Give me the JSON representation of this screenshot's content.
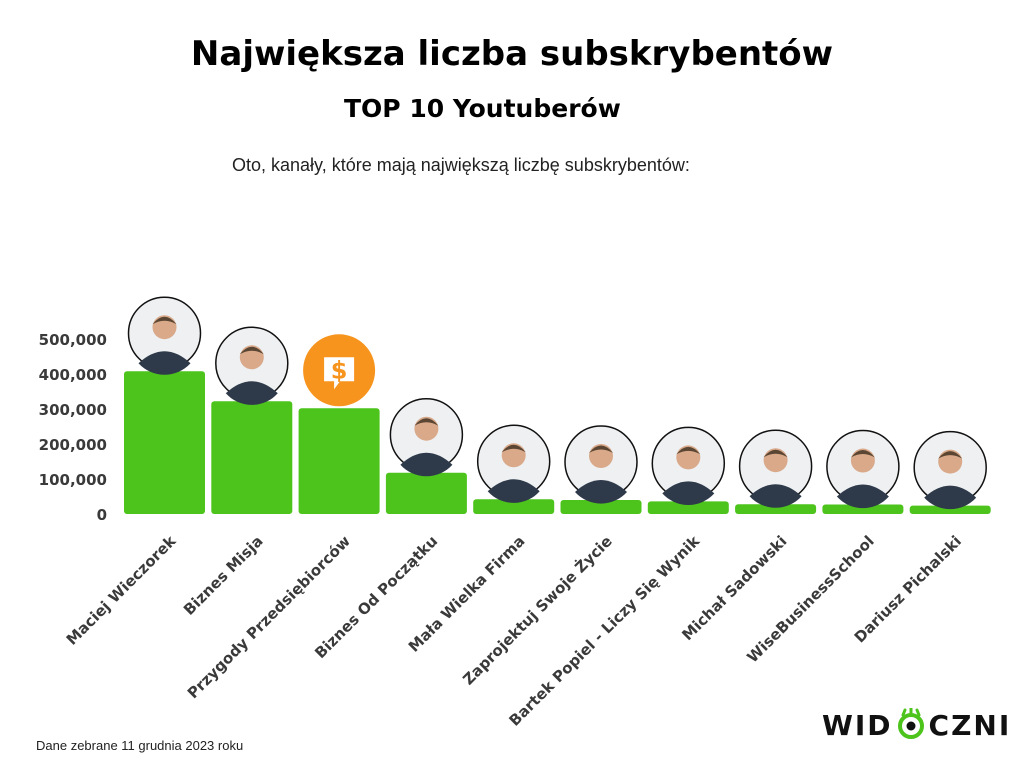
{
  "header": {
    "title": "Największa liczba subskrybentów",
    "subtitle": "TOP 10 Youtuberów",
    "intro": "Oto, kanały, które mają największą liczbę subskrybentów:"
  },
  "footer": {
    "note": "Dane zebrane 11 grudnia 2023 roku",
    "logo_left": "WID",
    "logo_right": "CZNI"
  },
  "colors": {
    "bar": "#4cc41c",
    "accent_orange": "#f7941d",
    "text": "#3a3a3a"
  },
  "chart_data": {
    "type": "bar",
    "title": "",
    "xlabel": "",
    "ylabel": "",
    "ylim": [
      0,
      500000
    ],
    "yticks": [
      0,
      100000,
      200000,
      300000,
      400000,
      500000
    ],
    "ytick_labels": [
      "0",
      "100,000",
      "200,000",
      "300,000",
      "400,000",
      "500,000"
    ],
    "grid": false,
    "legend": "none",
    "categories": [
      "Maciej Wieczorek",
      "Biznes Misja",
      "Przygody Przedsiębiorców",
      "Biznes Od Początku",
      "Mała Wielka Firma",
      "Zaprojektuj Swoje Życie",
      "Bartek Popiel - Liczy Się Wynik",
      "Michał Sadowski",
      "WiseBusinessSchool",
      "Dariusz Pichalski"
    ],
    "values": [
      408000,
      322000,
      302000,
      118000,
      42000,
      40000,
      36000,
      28000,
      27000,
      24000
    ],
    "avatars": [
      "person-photo",
      "person-photo",
      "dollar-logo",
      "person-photo",
      "person-photo",
      "person-photo",
      "person-photo",
      "person-photo",
      "person-photo",
      "person-photo"
    ]
  }
}
